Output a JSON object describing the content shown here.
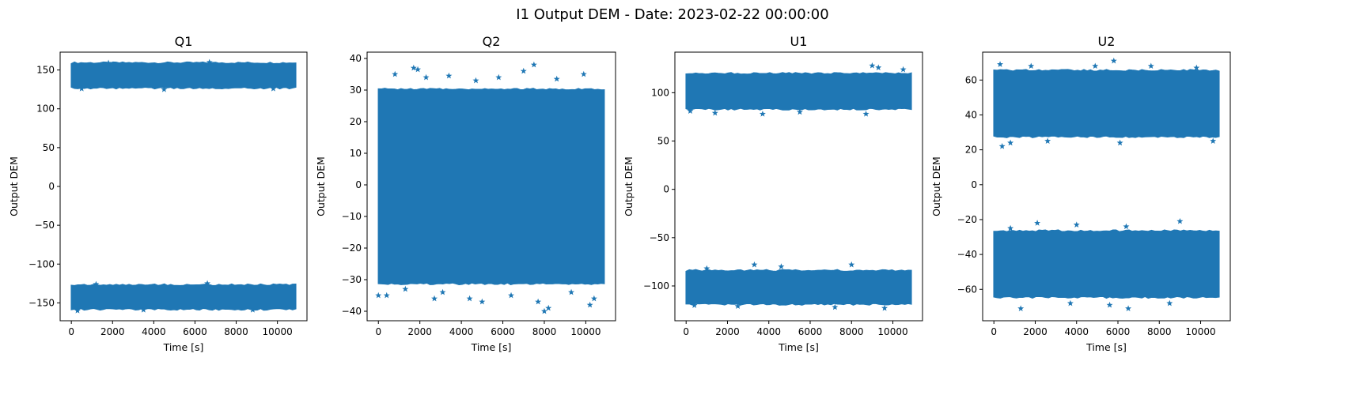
{
  "figure": {
    "suptitle": "I1 Output DEM - Date: 2023-02-22 00:00:00"
  },
  "style": {
    "marker_color": "#1f77b4",
    "marker": "star",
    "axes_color": "#000000"
  },
  "chart_data": [
    {
      "type": "scatter",
      "title": "Q1",
      "xlabel": "Time [s]",
      "ylabel": "Output DEM",
      "xlim": [
        -544,
        11434
      ],
      "ylim": [
        -173,
        173
      ],
      "xticks": [
        0,
        2000,
        4000,
        6000,
        8000,
        10000
      ],
      "yticks": [
        -150,
        -100,
        -50,
        0,
        50,
        100,
        150
      ],
      "series": [
        {
          "x_range": [
            0,
            10890
          ],
          "bands": [
            {
              "y_min": 128,
              "y_max": 158,
              "outliers": [
                [
                  6700,
                  160
                ],
                [
                  1800,
                  159
                ],
                [
                  500,
                  126
                ],
                [
                  4500,
                  125
                ],
                [
                  9800,
                  126
                ]
              ]
            },
            {
              "y_min": -157,
              "y_max": -128,
              "outliers": [
                [
                  6600,
                  -125
                ],
                [
                  1200,
                  -126
                ],
                [
                  3500,
                  -159
                ],
                [
                  8800,
                  -159
                ],
                [
                  300,
                  -160
                ]
              ]
            }
          ]
        }
      ]
    },
    {
      "type": "scatter",
      "title": "Q2",
      "xlabel": "Time [s]",
      "ylabel": "Output DEM",
      "xlim": [
        -544,
        11434
      ],
      "ylim": [
        -43,
        42
      ],
      "xticks": [
        0,
        2000,
        4000,
        6000,
        8000,
        10000
      ],
      "yticks": [
        -40,
        -30,
        -20,
        -10,
        0,
        10,
        20,
        30,
        40
      ],
      "series": [
        {
          "x_range": [
            0,
            10890
          ],
          "bands": [
            {
              "y_min": -31,
              "y_max": 30,
              "outliers": [
                [
                  7500,
                  38
                ],
                [
                  1700,
                  37
                ],
                [
                  1900,
                  36.5
                ],
                [
                  7000,
                  36
                ],
                [
                  9900,
                  35
                ],
                [
                  2300,
                  34
                ],
                [
                  3400,
                  34.5
                ],
                [
                  5800,
                  34
                ],
                [
                  800,
                  35
                ],
                [
                  4700,
                  33
                ],
                [
                  8600,
                  33.5
                ],
                [
                  8000,
                  -40
                ],
                [
                  8200,
                  -39
                ],
                [
                  10200,
                  -38
                ],
                [
                  10400,
                  -36
                ],
                [
                  7700,
                  -37
                ],
                [
                  5000,
                  -37
                ],
                [
                  4400,
                  -36
                ],
                [
                  2700,
                  -36
                ],
                [
                  0,
                  -35
                ],
                [
                  400,
                  -35
                ],
                [
                  6400,
                  -35
                ],
                [
                  9300,
                  -34
                ],
                [
                  3100,
                  -34
                ],
                [
                  1300,
                  -33
                ]
              ]
            }
          ]
        }
      ]
    },
    {
      "type": "scatter",
      "title": "U1",
      "xlabel": "Time [s]",
      "ylabel": "Output DEM",
      "xlim": [
        -544,
        11434
      ],
      "ylim": [
        -136,
        142
      ],
      "xticks": [
        0,
        2000,
        4000,
        6000,
        8000,
        10000
      ],
      "yticks": [
        -100,
        -50,
        0,
        50,
        100
      ],
      "series": [
        {
          "x_range": [
            0,
            10890
          ],
          "bands": [
            {
              "y_min": 84,
              "y_max": 119,
              "outliers": [
                [
                  9000,
                  128
                ],
                [
                  9300,
                  126
                ],
                [
                  10500,
                  124
                ],
                [
                  1400,
                  79
                ],
                [
                  3700,
                  78
                ],
                [
                  8700,
                  78
                ],
                [
                  5500,
                  80
                ],
                [
                  200,
                  81
                ]
              ]
            },
            {
              "y_min": -118,
              "y_max": -85,
              "outliers": [
                [
                  3300,
                  -78
                ],
                [
                  8000,
                  -78
                ],
                [
                  4600,
                  -80
                ],
                [
                  1000,
                  -82
                ],
                [
                  9600,
                  -123
                ],
                [
                  7200,
                  -122
                ],
                [
                  2500,
                  -121
                ],
                [
                  400,
                  -120
                ]
              ]
            }
          ]
        }
      ]
    },
    {
      "type": "scatter",
      "title": "U2",
      "xlabel": "Time [s]",
      "ylabel": "Output DEM",
      "xlim": [
        -544,
        11434
      ],
      "ylim": [
        -78,
        76
      ],
      "xticks": [
        0,
        2000,
        4000,
        6000,
        8000,
        10000
      ],
      "yticks": [
        -60,
        -40,
        -20,
        0,
        20,
        40,
        60
      ],
      "series": [
        {
          "x_range": [
            0,
            10890
          ],
          "bands": [
            {
              "y_min": 28,
              "y_max": 65,
              "outliers": [
                [
                  5800,
                  71
                ],
                [
                  300,
                  69
                ],
                [
                  1800,
                  68
                ],
                [
                  4900,
                  68
                ],
                [
                  7600,
                  68
                ],
                [
                  9800,
                  67
                ],
                [
                  800,
                  24
                ],
                [
                  400,
                  22
                ],
                [
                  2600,
                  25
                ],
                [
                  6100,
                  24
                ],
                [
                  10600,
                  25
                ]
              ]
            },
            {
              "y_min": -64,
              "y_max": -27,
              "outliers": [
                [
                  9000,
                  -21
                ],
                [
                  2100,
                  -22
                ],
                [
                  4000,
                  -23
                ],
                [
                  6400,
                  -24
                ],
                [
                  800,
                  -25
                ],
                [
                  1300,
                  -71
                ],
                [
                  6500,
                  -71
                ],
                [
                  5600,
                  -69
                ],
                [
                  3700,
                  -68
                ],
                [
                  8500,
                  -68
                ]
              ]
            }
          ]
        }
      ]
    }
  ]
}
